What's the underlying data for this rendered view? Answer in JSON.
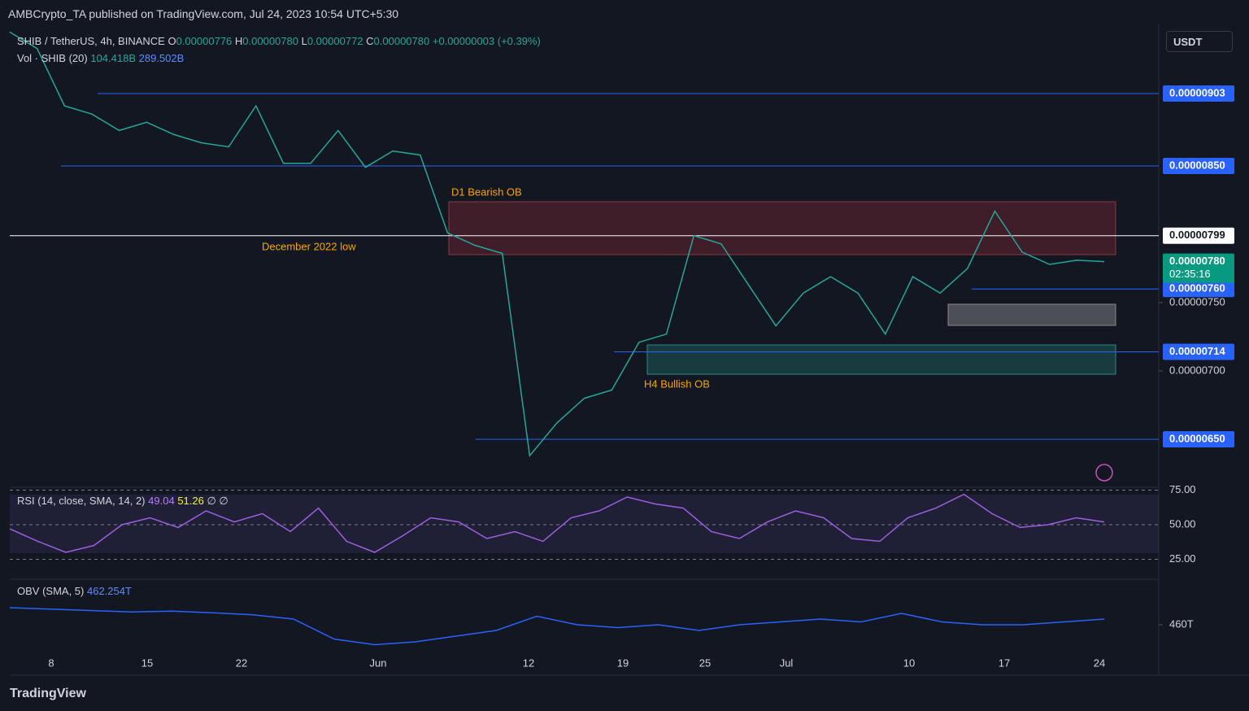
{
  "header": {
    "publisher": "AMBCrypto_TA published on TradingView.com, Jul 24, 2023 10:54 UTC+5:30",
    "currency": "USDT"
  },
  "legend": {
    "symbol": "SHIB / TetherUS, 4h, BINANCE",
    "o_label": "O",
    "o": "0.00000776",
    "h_label": "H",
    "h": "0.00000780",
    "l_label": "L",
    "l": "0.00000772",
    "c_label": "C",
    "c": "0.00000780",
    "change": "+0.00000003 (+0.39%)"
  },
  "volume": {
    "label": "Vol · SHIB (20)",
    "v1": "104.418B",
    "v2": "289.502B"
  },
  "annotations": [
    "D1 Bearish OB",
    "December 2022 low",
    "H4 Bullish OB"
  ],
  "price_axis": {
    "levels": [
      {
        "value": 9.03e-06,
        "label": "0.00000903"
      },
      {
        "value": 8.5e-06,
        "label": "0.00000850"
      },
      {
        "value": 7.99e-06,
        "label": "0.00000799"
      },
      {
        "value": 7.6e-06,
        "label": "0.00000760"
      },
      {
        "value": 7.14e-06,
        "label": "0.00000714"
      },
      {
        "value": 6.5e-06,
        "label": "0.00000650"
      }
    ],
    "plain": [
      {
        "value": 7.5e-06,
        "label": "0.00000750"
      },
      {
        "value": 7e-06,
        "label": "0.00000700"
      }
    ],
    "current": {
      "value": 7.8e-06,
      "label": "0.00000780",
      "timer": "02:35:16"
    }
  },
  "price": {
    "values": [
      9.48e-06,
      9.36e-06,
      8.94e-06,
      8.88e-06,
      8.76e-06,
      8.82e-06,
      8.73e-06,
      8.67e-06,
      8.64e-06,
      8.94e-06,
      8.52e-06,
      8.52e-06,
      8.76e-06,
      8.49e-06,
      8.61e-06,
      8.58e-06,
      8.01e-06,
      7.92e-06,
      7.86e-06,
      6.38e-06,
      6.62e-06,
      6.8e-06,
      6.86e-06,
      7.21e-06,
      7.27e-06,
      7.99e-06,
      7.93e-06,
      7.63e-06,
      7.33e-06,
      7.57e-06,
      7.69e-06,
      7.57e-06,
      7.27e-06,
      7.69e-06,
      7.57e-06,
      7.75e-06,
      8.17e-06,
      7.87e-06,
      7.78e-06,
      7.81e-06,
      7.8e-06
    ]
  },
  "rsi": {
    "label": "RSI (14, close, SMA, 14, 2)",
    "v1": "49.04",
    "v2": "51.26",
    "extra": "∅ ∅",
    "ticks": [
      {
        "value": 75,
        "label": "75.00"
      },
      {
        "value": 50,
        "label": "50.00"
      },
      {
        "value": 25,
        "label": "25.00"
      }
    ],
    "values": [
      47,
      38,
      30,
      35,
      50,
      55,
      48,
      60,
      52,
      58,
      45,
      62,
      38,
      30,
      42,
      55,
      52,
      40,
      45,
      38,
      55,
      60,
      70,
      65,
      62,
      45,
      40,
      52,
      60,
      55,
      40,
      38,
      55,
      62,
      72,
      58,
      48,
      50,
      55,
      52
    ]
  },
  "obv": {
    "label": "OBV (SMA, 5)",
    "value": "462.254T",
    "ticks": [
      {
        "value": 460,
        "label": "460T"
      }
    ],
    "values": [
      466,
      465.5,
      465,
      464.5,
      464.8,
      464.2,
      463.5,
      462,
      455,
      453,
      454,
      456,
      458,
      463,
      460,
      459,
      460,
      458,
      460,
      461,
      462,
      461,
      464,
      461,
      460,
      460,
      461,
      462
    ]
  },
  "time_axis": [
    "8",
    "15",
    "22",
    "Jun",
    "12",
    "19",
    "25",
    "Jul",
    "10",
    "17",
    "24"
  ],
  "footer": "TradingView"
}
